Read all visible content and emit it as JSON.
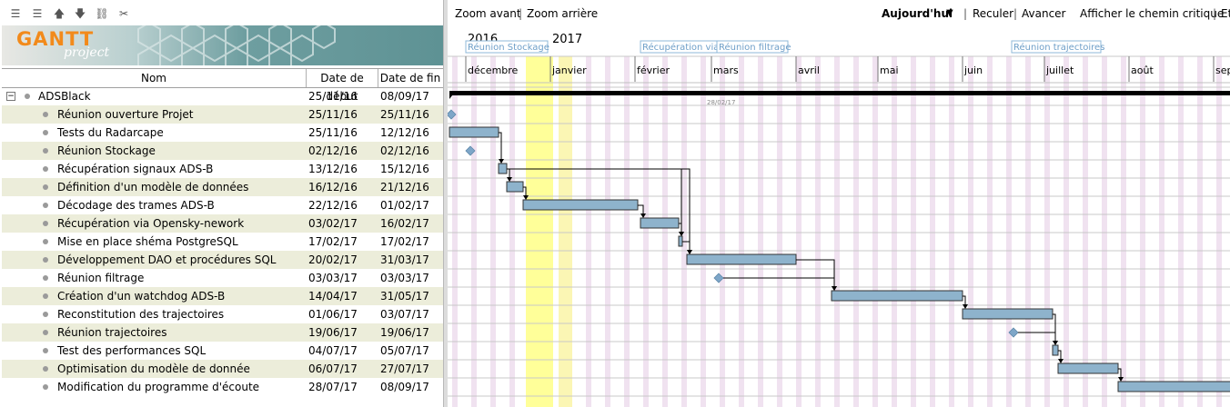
{
  "toolbar": {
    "icons": [
      "outdent-icon",
      "indent-icon",
      "move-up-icon",
      "move-down-icon",
      "link-icon",
      "unlink-icon"
    ]
  },
  "logo": {
    "brand": "GANTT",
    "sub": "project"
  },
  "columns": {
    "name": "Nom",
    "start": "Date de début",
    "end": "Date de fin"
  },
  "project": {
    "name": "ADSBlack",
    "start": "25/11/16",
    "end": "08/09/17"
  },
  "tasks": [
    {
      "name": "Réunion ouverture Projet",
      "start": "25/11/16",
      "end": "25/11/16"
    },
    {
      "name": "Tests du Radarcape",
      "start": "25/11/16",
      "end": "12/12/16"
    },
    {
      "name": "Réunion Stockage",
      "start": "02/12/16",
      "end": "02/12/16"
    },
    {
      "name": "Récupération signaux ADS-B",
      "start": "13/12/16",
      "end": "15/12/16"
    },
    {
      "name": "Définition d'un modèle de données",
      "start": "16/12/16",
      "end": "21/12/16"
    },
    {
      "name": "Décodage des trames ADS-B",
      "start": "22/12/16",
      "end": "01/02/17"
    },
    {
      "name": "Récupération via Opensky-nework",
      "start": "03/02/17",
      "end": "16/02/17"
    },
    {
      "name": "Mise en place shéma PostgreSQL",
      "start": "17/02/17",
      "end": "17/02/17"
    },
    {
      "name": "Développement DAO et procédures SQL",
      "start": "20/02/17",
      "end": "31/03/17"
    },
    {
      "name": "Réunion filtrage",
      "start": "03/03/17",
      "end": "03/03/17"
    },
    {
      "name": "Création d'un watchdog ADS-B",
      "start": "14/04/17",
      "end": "31/05/17"
    },
    {
      "name": "Reconstitution des trajectoires",
      "start": "01/06/17",
      "end": "03/07/17"
    },
    {
      "name": "Réunion trajectoires",
      "start": "19/06/17",
      "end": "19/06/17"
    },
    {
      "name": "Test des performances SQL",
      "start": "04/07/17",
      "end": "05/07/17"
    },
    {
      "name": "Optimisation du modèle de donnée",
      "start": "06/07/17",
      "end": "27/07/17"
    },
    {
      "name": "Modification du programme d'écoute",
      "start": "28/07/17",
      "end": "08/09/17"
    }
  ],
  "chart_toolbar": {
    "zoom_in": "Zoom avant",
    "zoom_out": "Zoom arrière",
    "today": "Aujourd'hui",
    "back": "Reculer",
    "forward": "Avancer",
    "critical_path": "Afficher le chemin critique",
    "more": "Et"
  },
  "timeline": {
    "years": [
      "2016",
      "2017"
    ],
    "months": [
      "décembre",
      "janvier",
      "février",
      "mars",
      "avril",
      "mai",
      "juin",
      "juillet",
      "août",
      "septem"
    ],
    "milestone_flags": [
      "Réunion Stockage",
      "Récupération via",
      "Réunion filtrage",
      "Réunion trajectoires"
    ],
    "today_marker": "28/02/17"
  },
  "colors": {
    "bar": "#8eb3cc",
    "milestone": "#7ea6c8",
    "weekend": "#f0e2f0",
    "holiday": "#ffff99",
    "alt_row": "#ecedda"
  }
}
